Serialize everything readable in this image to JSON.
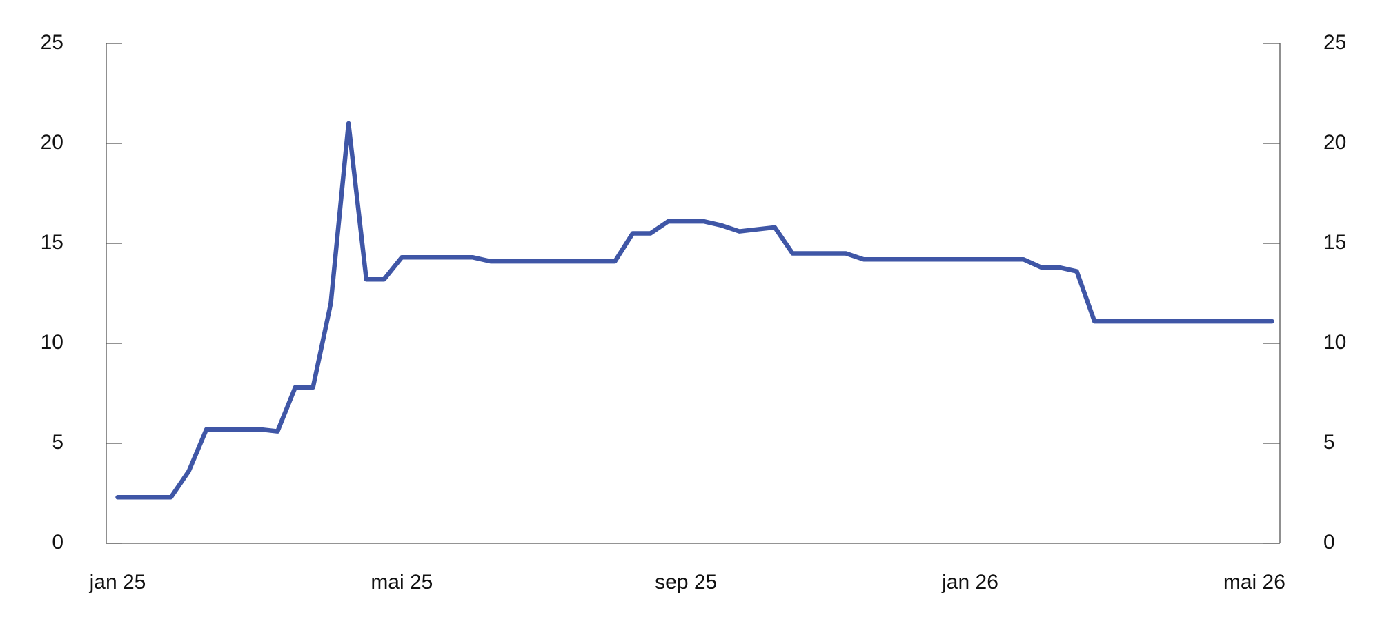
{
  "chart_data": {
    "type": "line",
    "categories": [
      "jan 25",
      null,
      null,
      null,
      null,
      null,
      null,
      null,
      null,
      null,
      null,
      null,
      null,
      null,
      null,
      null,
      "mai 25",
      null,
      null,
      null,
      null,
      null,
      null,
      null,
      null,
      null,
      null,
      null,
      null,
      null,
      null,
      null,
      "sep 25",
      null,
      null,
      null,
      null,
      null,
      null,
      null,
      null,
      null,
      null,
      null,
      null,
      null,
      null,
      null,
      "jan 26",
      null,
      null,
      null,
      null,
      null,
      null,
      null,
      null,
      null,
      null,
      null,
      null,
      null,
      null,
      null,
      "mai 26",
      null
    ],
    "series": [
      {
        "color": "#3f56a6",
        "values": [
          2.3,
          2.3,
          2.3,
          2.3,
          3.6,
          5.7,
          5.7,
          5.7,
          5.7,
          5.6,
          7.8,
          7.8,
          12,
          21,
          13.2,
          13.2,
          14.3,
          14.3,
          14.3,
          14.3,
          14.3,
          14.1,
          14.1,
          14.1,
          14.1,
          14.1,
          14.1,
          14.1,
          14.1,
          15.5,
          15.5,
          16.1,
          16.1,
          16.1,
          15.9,
          15.6,
          15.7,
          15.8,
          14.5,
          14.5,
          14.5,
          14.5,
          14.2,
          14.2,
          14.2,
          14.2,
          14.2,
          14.2,
          14.2,
          14.2,
          14.2,
          14.2,
          13.8,
          13.8,
          13.6,
          11.1,
          11.1,
          11.1,
          11.1,
          11.1,
          11.1,
          11.1,
          11.1,
          11.1,
          11.1,
          11.1
        ]
      }
    ],
    "ylim": [
      0,
      25
    ],
    "yticks": [
      0,
      5,
      10,
      15,
      20,
      25
    ],
    "y2lim": [
      0,
      25
    ],
    "y2ticks": [
      0,
      5,
      10,
      15,
      20,
      25
    ]
  }
}
